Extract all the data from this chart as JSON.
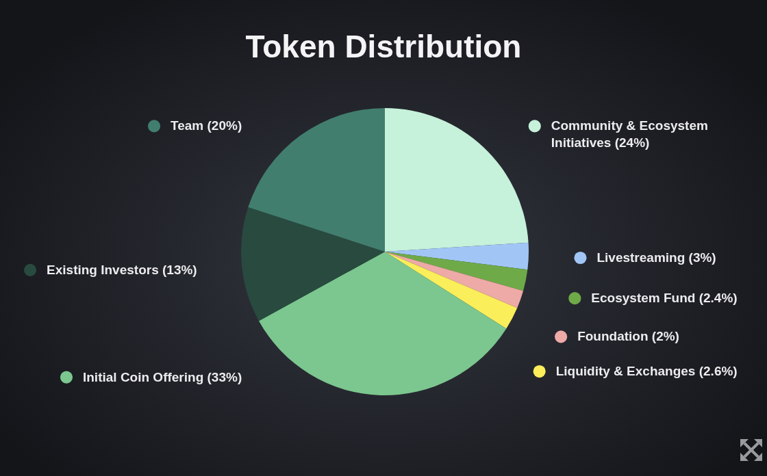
{
  "chart_data": {
    "type": "pie",
    "title": "Token Distribution",
    "categories": [
      "Community & Ecosystem Initiatives (24%)",
      "Livestreaming (3%)",
      "Ecosystem Fund (2.4%)",
      "Foundation (2%)",
      "Liquidity & Exchanges (2.6%)",
      "Initial Coin Offering (33%)",
      "Existing Investors (13%)",
      "Team (20%)"
    ],
    "values": [
      24,
      3,
      2.4,
      2,
      2.6,
      33,
      13,
      20
    ],
    "colors": [
      "#c6f1da",
      "#a1c6f6",
      "#6faa48",
      "#eeaaa6",
      "#faee5a",
      "#7bc78f",
      "#284a3f",
      "#417e6e"
    ],
    "legend": "right"
  }
}
